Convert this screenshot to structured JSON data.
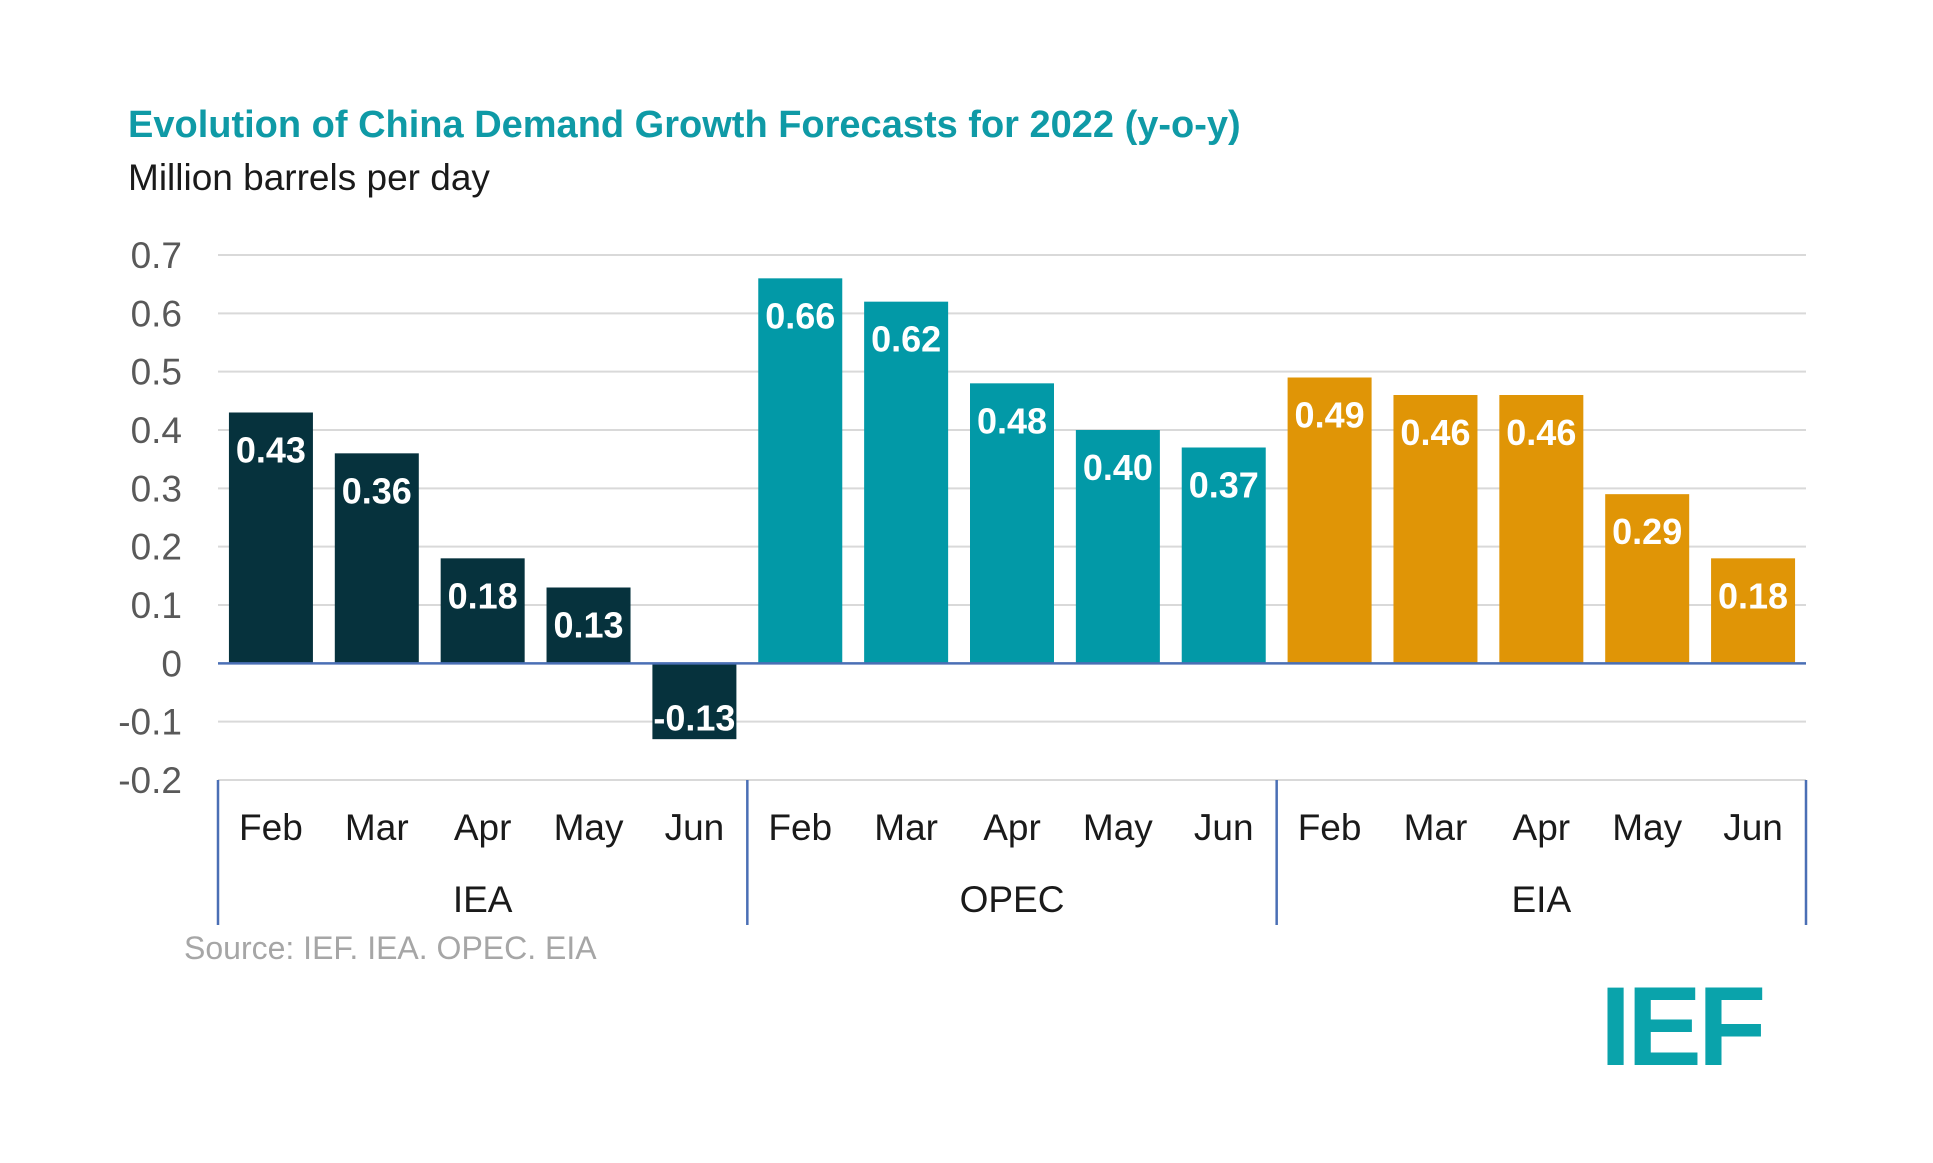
{
  "chart_data": {
    "type": "bar",
    "title": "Evolution of China Demand Growth Forecasts for 2022 (y-o-y)",
    "subtitle": "Million barrels per day",
    "ylabel": "Million barrels per day",
    "ylim": [
      -0.2,
      0.7
    ],
    "yticks": [
      "0.7",
      "0.6",
      "0.5",
      "0.4",
      "0.3",
      "0.2",
      "0.1",
      "0",
      "-0.1",
      "-0.2"
    ],
    "ytick_values": [
      0.7,
      0.6,
      0.5,
      0.4,
      0.3,
      0.2,
      0.1,
      0,
      -0.1,
      -0.2
    ],
    "grid": true,
    "groups": [
      {
        "name": "IEA",
        "color": "#06323d",
        "categories": [
          "Feb",
          "Mar",
          "Apr",
          "May",
          "Jun"
        ],
        "values": [
          0.43,
          0.36,
          0.18,
          0.13,
          -0.13
        ],
        "labels": [
          "0.43",
          "0.36",
          "0.18",
          "0.13",
          "-0.13"
        ]
      },
      {
        "name": "OPEC",
        "color": "#0299a7",
        "categories": [
          "Feb",
          "Mar",
          "Apr",
          "May",
          "Jun"
        ],
        "values": [
          0.66,
          0.62,
          0.48,
          0.4,
          0.37
        ],
        "labels": [
          "0.66",
          "0.62",
          "0.48",
          "0.40",
          "0.37"
        ]
      },
      {
        "name": "EIA",
        "color": "#e09506",
        "categories": [
          "Feb",
          "Mar",
          "Apr",
          "May",
          "Jun"
        ],
        "values": [
          0.49,
          0.46,
          0.46,
          0.29,
          0.18
        ],
        "labels": [
          "0.49",
          "0.46",
          "0.46",
          "0.29",
          "0.18"
        ]
      }
    ]
  },
  "source": "Source: IEF. IEA. OPEC. EIA",
  "logo": {
    "text": "IEF",
    "color": "#0aa3ab"
  },
  "colors": {
    "title": "#0f9aa6",
    "grid": "#d9d9d9",
    "axis": "#4a6fb5"
  }
}
